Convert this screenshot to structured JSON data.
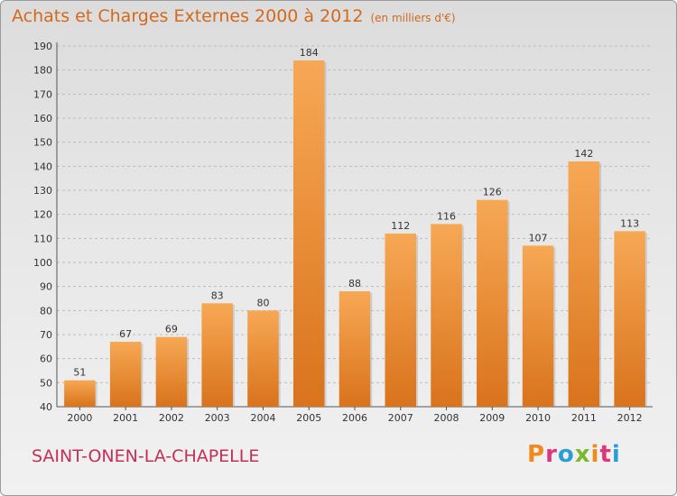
{
  "header": {
    "title": "Achats et Charges Externes 2000 à 2012",
    "unit": "(en milliers d'€)"
  },
  "footer": {
    "commune": "SAINT-ONEN-LA-CHAPELLE",
    "logo": "Proxiti",
    "logo_colors": [
      "#f08a1d",
      "#e0357a",
      "#2a9fd6",
      "#7ab929",
      "#f08a1d",
      "#e0357a",
      "#2a9fd6"
    ]
  },
  "colors": {
    "bar_light": "#f7a855",
    "bar_dark": "#d9731c",
    "grid": "#bcbcbc",
    "title": "#d2691e",
    "commune": "#c2305a"
  },
  "chart_data": {
    "type": "bar",
    "categories": [
      "2000",
      "2001",
      "2002",
      "2003",
      "2004",
      "2005",
      "2006",
      "2007",
      "2008",
      "2009",
      "2010",
      "2011",
      "2012"
    ],
    "values": [
      51,
      67,
      69,
      83,
      80,
      184,
      88,
      112,
      116,
      126,
      107,
      142,
      113
    ],
    "yticks": [
      40,
      50,
      60,
      70,
      80,
      90,
      100,
      110,
      120,
      130,
      140,
      150,
      160,
      170,
      180,
      190
    ],
    "ylim": [
      40,
      190
    ],
    "grid": true,
    "legend": "none"
  }
}
